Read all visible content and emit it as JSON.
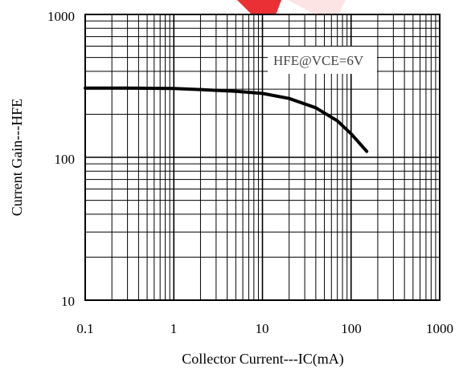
{
  "chart_data": {
    "type": "line",
    "xscale": "log",
    "yscale": "log",
    "xlim": [
      0.1,
      1000
    ],
    "ylim": [
      10,
      1000
    ],
    "xlabel": "Collector Current---IC(mA)",
    "ylabel": "Current Gain---HFE",
    "x_ticks": [
      "0.1",
      "1",
      "10",
      "100",
      "1000"
    ],
    "y_ticks": [
      "10",
      "100",
      "1000"
    ],
    "grid": true,
    "annotation": "HFE@VCE=6V",
    "series": [
      {
        "x": [
          0.1,
          0.3,
          1,
          2,
          5,
          10,
          20,
          40,
          70,
          100,
          150
        ],
        "y": [
          305,
          305,
          303,
          298,
          290,
          280,
          258,
          222,
          180,
          146,
          110
        ]
      }
    ]
  },
  "style": {
    "line_color": "#000000",
    "grid_color": "#000000",
    "watermark_color": "#e8191e"
  }
}
